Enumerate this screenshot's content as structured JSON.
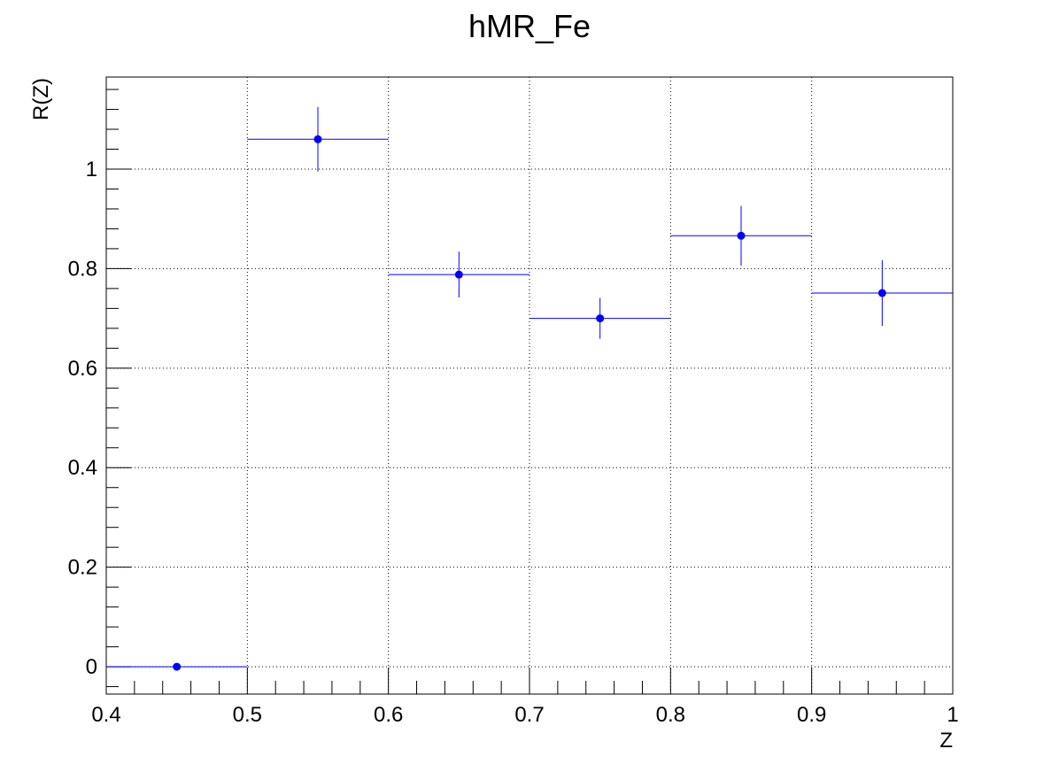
{
  "chart_data": {
    "type": "scatter",
    "title": "hMR_Fe",
    "xlabel": "Z",
    "ylabel": "R(Z)",
    "xlim": [
      0.4,
      1.0
    ],
    "ylim": [
      -0.055,
      1.185
    ],
    "x_ticks": [
      "0.4",
      "0.5",
      "0.6",
      "0.7",
      "0.8",
      "0.9",
      "1"
    ],
    "y_ticks": [
      "0",
      "0.2",
      "0.4",
      "0.6",
      "0.8",
      "1"
    ],
    "grid": true,
    "marker_color": "#0000ff",
    "series": [
      {
        "points": [
          {
            "x": 0.45,
            "y": 0.0,
            "xerr": 0.05,
            "yerr": 0.0
          },
          {
            "x": 0.55,
            "y": 1.06,
            "xerr": 0.05,
            "yerr": 0.065
          },
          {
            "x": 0.65,
            "y": 0.788,
            "xerr": 0.05,
            "yerr": 0.046
          },
          {
            "x": 0.75,
            "y": 0.7,
            "xerr": 0.05,
            "yerr": 0.041
          },
          {
            "x": 0.85,
            "y": 0.866,
            "xerr": 0.05,
            "yerr": 0.06
          },
          {
            "x": 0.95,
            "y": 0.751,
            "xerr": 0.05,
            "yerr": 0.066
          }
        ]
      }
    ]
  }
}
